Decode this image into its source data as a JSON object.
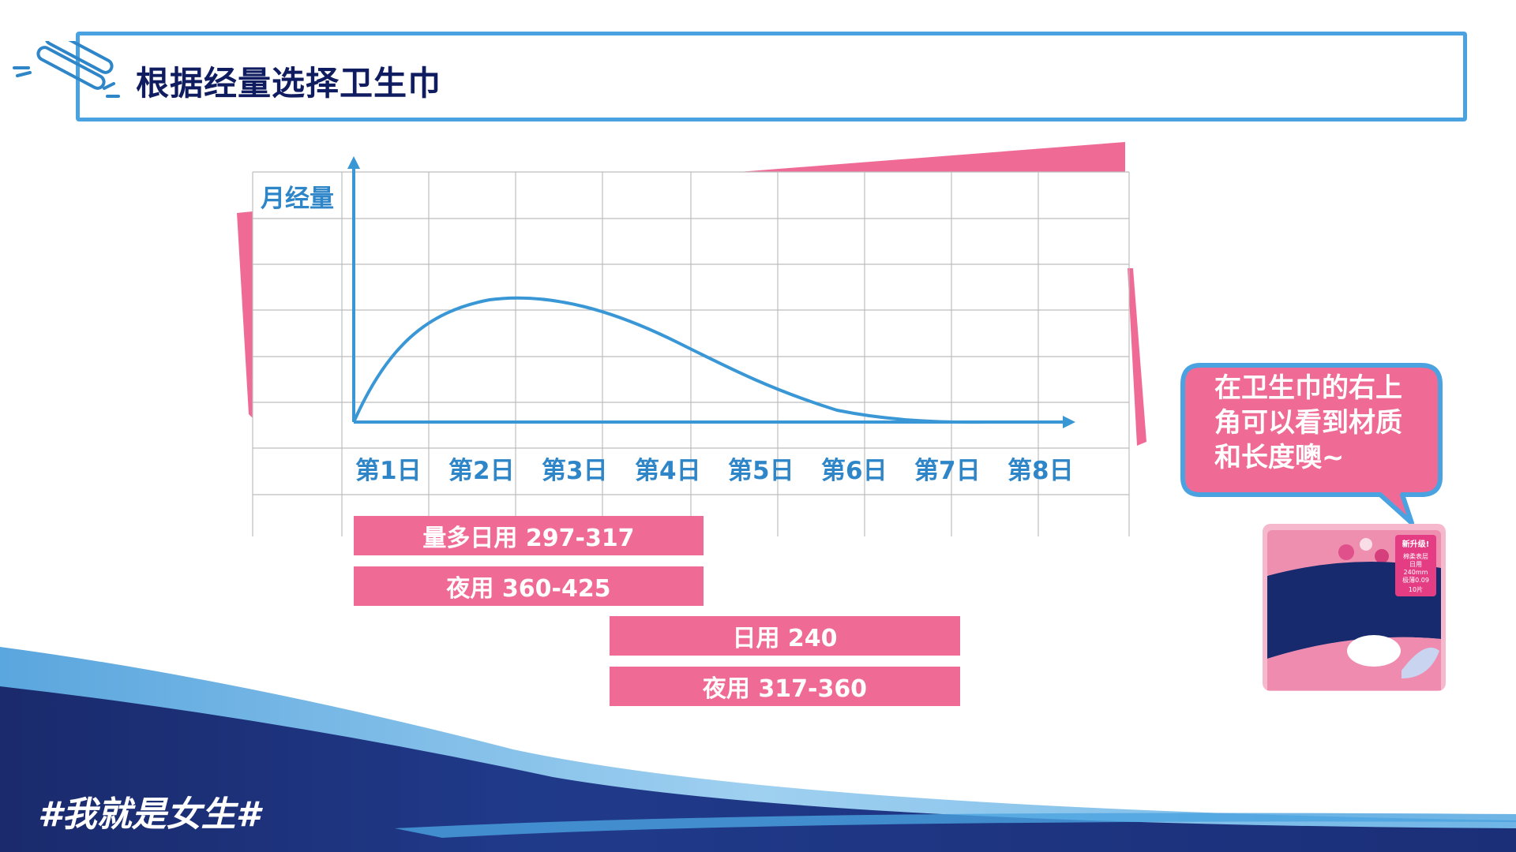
{
  "title": "根据经量选择卫生巾",
  "chart": {
    "ylabel": "月经量",
    "days": [
      "第1日",
      "第2日",
      "第3日",
      "第4日",
      "第5日",
      "第6日",
      "第7日",
      "第8日"
    ]
  },
  "chart_data": {
    "type": "line",
    "ylabel": "月经量",
    "xlabel": "",
    "categories": [
      "第1日",
      "第2日",
      "第3日",
      "第4日",
      "第5日",
      "第6日",
      "第7日",
      "第8日"
    ],
    "grid": true
  },
  "bars": [
    {
      "label": "量多日用 297-317"
    },
    {
      "label": "夜用 360-425"
    },
    {
      "label": "日用 240"
    },
    {
      "label": "夜用 317-360"
    }
  ],
  "bubble": {
    "text_line1": "在卫生巾的右上",
    "text_line2": "角可以看到材质",
    "text_line3": "和长度噢~"
  },
  "product": {
    "badge": "新升级!",
    "spec_line1": "棉柔表层",
    "spec_line2": "日用",
    "spec_line3": "240mm",
    "spec_line4": "极薄0.09",
    "spec_line5": "10片"
  },
  "footer": {
    "hashtag": "#我就是女生#"
  },
  "colors": {
    "accent_pink": "#ef6b96",
    "title_navy": "#101c60",
    "chart_blue": "#2e86c8",
    "frame_blue": "#4aa3e0"
  }
}
